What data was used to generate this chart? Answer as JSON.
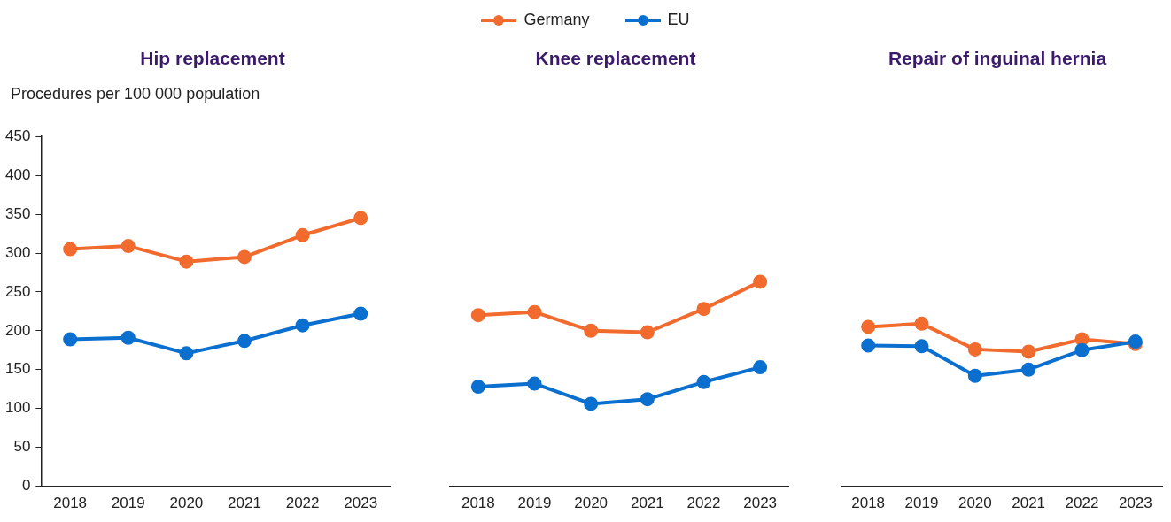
{
  "chart_data": [
    {
      "type": "line",
      "title": "Hip replacement",
      "ylabel": "Procedures per 100 000 population",
      "categories": [
        "2018",
        "2019",
        "2020",
        "2021",
        "2022",
        "2023"
      ],
      "ylim": [
        0,
        450
      ],
      "yticks": [
        0,
        50,
        100,
        150,
        200,
        250,
        300,
        350,
        400,
        450
      ],
      "grid": false,
      "marker": "circle",
      "legend": "top",
      "series": [
        {
          "name": "Germany",
          "color": "#f26b2e",
          "values": [
            305,
            309,
            289,
            295,
            323,
            345
          ]
        },
        {
          "name": "EU",
          "color": "#0a6fce",
          "values": [
            189,
            191,
            171,
            187,
            207,
            222
          ]
        }
      ]
    },
    {
      "type": "line",
      "title": "Knee replacement",
      "categories": [
        "2018",
        "2019",
        "2020",
        "2021",
        "2022",
        "2023"
      ],
      "ylim": [
        0,
        450
      ],
      "tick_labels": "x",
      "grid": false,
      "marker": "circle",
      "series": [
        {
          "name": "Germany",
          "color": "#f26b2e",
          "values": [
            220,
            224,
            200,
            198,
            228,
            263
          ]
        },
        {
          "name": "EU",
          "color": "#0a6fce",
          "values": [
            128,
            132,
            106,
            112,
            134,
            153
          ]
        }
      ]
    },
    {
      "type": "line",
      "title": "Repair of inguinal hernia",
      "categories": [
        "2018",
        "2019",
        "2020",
        "2021",
        "2022",
        "2023"
      ],
      "ylim": [
        0,
        450
      ],
      "tick_labels": "x",
      "grid": false,
      "marker": "circle",
      "series": [
        {
          "name": "Germany",
          "color": "#f26b2e",
          "values": [
            205,
            209,
            176,
            173,
            189,
            183
          ]
        },
        {
          "name": "EU",
          "color": "#0a6fce",
          "values": [
            181,
            180,
            142,
            150,
            175,
            186
          ]
        }
      ]
    }
  ]
}
